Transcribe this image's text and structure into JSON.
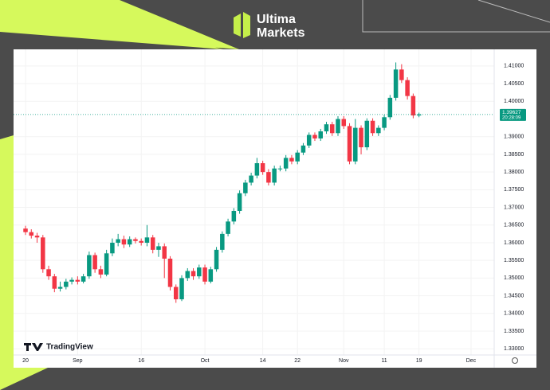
{
  "brand": [
    "Ultima",
    "Markets"
  ],
  "watermark": "TradingView",
  "chart_data": {
    "type": "candlestick",
    "up_color": "#089981",
    "down_color": "#f23645",
    "open": [
      1.364,
      1.363,
      1.362,
      1.3615,
      1.3525,
      1.3505,
      1.347,
      1.3475,
      1.349,
      1.3495,
      1.349,
      1.3505,
      1.3565,
      1.3525,
      1.351,
      1.357,
      1.36,
      1.361,
      1.3595,
      1.361,
      1.3605,
      1.36,
      1.3615,
      1.358,
      1.359,
      1.3555,
      1.3475,
      1.344,
      1.35,
      1.352,
      1.3505,
      1.353,
      1.349,
      1.3525,
      1.358,
      1.3625,
      1.366,
      1.369,
      1.374,
      1.377,
      1.379,
      1.3825,
      1.38,
      1.377,
      1.381,
      1.381,
      1.384,
      1.383,
      1.3855,
      1.3875,
      1.3905,
      1.3895,
      1.3915,
      1.3935,
      1.391,
      1.395,
      1.393,
      1.383,
      1.3925,
      1.387,
      1.3945,
      1.391,
      1.3925,
      1.3955,
      1.401,
      1.409,
      1.406,
      1.4015,
      1.396
    ],
    "high": [
      1.3648,
      1.3638,
      1.3628,
      1.3622,
      1.3535,
      1.3512,
      1.349,
      1.3498,
      1.3502,
      1.3505,
      1.3512,
      1.3575,
      1.3572,
      1.3535,
      1.358,
      1.3612,
      1.3625,
      1.362,
      1.3618,
      1.3615,
      1.3612,
      1.365,
      1.3622,
      1.36,
      1.3598,
      1.3562,
      1.3482,
      1.3508,
      1.3528,
      1.3528,
      1.3538,
      1.3538,
      1.3532,
      1.3588,
      1.3632,
      1.3668,
      1.3698,
      1.3748,
      1.3778,
      1.3798,
      1.384,
      1.3832,
      1.3808,
      1.3818,
      1.3818,
      1.3848,
      1.3848,
      1.3862,
      1.3882,
      1.3912,
      1.3912,
      1.3922,
      1.3942,
      1.3942,
      1.3958,
      1.3958,
      1.3938,
      1.395,
      1.3932,
      1.3952,
      1.3952,
      1.3932,
      1.3962,
      1.4018,
      1.411,
      1.4105,
      1.4068,
      1.4022,
      1.3968
    ],
    "low": [
      1.3622,
      1.3612,
      1.36,
      1.3515,
      1.3495,
      1.346,
      1.3462,
      1.3468,
      1.3482,
      1.3482,
      1.3485,
      1.3498,
      1.3515,
      1.35,
      1.3505,
      1.3562,
      1.359,
      1.3585,
      1.3588,
      1.3598,
      1.3592,
      1.359,
      1.357,
      1.356,
      1.35,
      1.3465,
      1.343,
      1.3435,
      1.3492,
      1.3495,
      1.3498,
      1.3482,
      1.3485,
      1.3518,
      1.3572,
      1.3618,
      1.3652,
      1.3682,
      1.3732,
      1.3762,
      1.3782,
      1.3792,
      1.3762,
      1.3762,
      1.3802,
      1.3802,
      1.3822,
      1.3822,
      1.3848,
      1.3868,
      1.3888,
      1.3888,
      1.3908,
      1.3902,
      1.3902,
      1.3922,
      1.3822,
      1.3822,
      1.385,
      1.3862,
      1.3902,
      1.3902,
      1.3918,
      1.3948,
      1.4002,
      1.4052,
      1.4005,
      1.3952,
      1.3955
    ],
    "close": [
      1.363,
      1.362,
      1.3615,
      1.3525,
      1.3505,
      1.347,
      1.3475,
      1.349,
      1.3495,
      1.349,
      1.3505,
      1.3565,
      1.3525,
      1.351,
      1.357,
      1.36,
      1.361,
      1.3595,
      1.361,
      1.3605,
      1.36,
      1.3615,
      1.358,
      1.359,
      1.3555,
      1.3475,
      1.344,
      1.35,
      1.352,
      1.3505,
      1.353,
      1.349,
      1.3525,
      1.358,
      1.3625,
      1.366,
      1.369,
      1.374,
      1.377,
      1.379,
      1.3825,
      1.38,
      1.377,
      1.381,
      1.381,
      1.384,
      1.383,
      1.3855,
      1.3875,
      1.3905,
      1.3895,
      1.3915,
      1.3935,
      1.391,
      1.395,
      1.393,
      1.383,
      1.3925,
      1.387,
      1.3945,
      1.391,
      1.3925,
      1.3955,
      1.401,
      1.409,
      1.406,
      1.4015,
      1.396,
      1.3963
    ],
    "xlim": [
      -2,
      81
    ],
    "xticks": [
      {
        "value": 0,
        "label": "20"
      },
      {
        "value": 9,
        "label": "Sep"
      },
      {
        "value": 20,
        "label": "16"
      },
      {
        "value": 31,
        "label": "Oct"
      },
      {
        "value": 41,
        "label": "14"
      },
      {
        "value": 47,
        "label": "22"
      },
      {
        "value": 55,
        "label": "Nov"
      },
      {
        "value": 62,
        "label": "11"
      },
      {
        "value": 68,
        "label": "19"
      },
      {
        "value": 77,
        "label": "Dec"
      }
    ],
    "ylim": [
      1.3278,
      1.4129
    ],
    "yticks": [
      {
        "value": 1.41,
        "label": "1.41000"
      },
      {
        "value": 1.405,
        "label": "1.40500"
      },
      {
        "value": 1.4,
        "label": "1.40000"
      },
      {
        "value": 1.39,
        "label": "1.39000"
      },
      {
        "value": 1.385,
        "label": "1.38500"
      },
      {
        "value": 1.38,
        "label": "1.38000"
      },
      {
        "value": 1.375,
        "label": "1.37500"
      },
      {
        "value": 1.37,
        "label": "1.37000"
      },
      {
        "value": 1.365,
        "label": "1.36500"
      },
      {
        "value": 1.36,
        "label": "1.36000"
      },
      {
        "value": 1.355,
        "label": "1.35500"
      },
      {
        "value": 1.35,
        "label": "1.35000"
      },
      {
        "value": 1.345,
        "label": "1.34500"
      },
      {
        "value": 1.34,
        "label": "1.34000"
      },
      {
        "value": 1.335,
        "label": "1.33500"
      },
      {
        "value": 1.33,
        "label": "1.33000"
      }
    ],
    "grid": true,
    "last_price": {
      "value": 1.39627,
      "label": "1.39627"
    },
    "countdown": "20:28:09"
  }
}
